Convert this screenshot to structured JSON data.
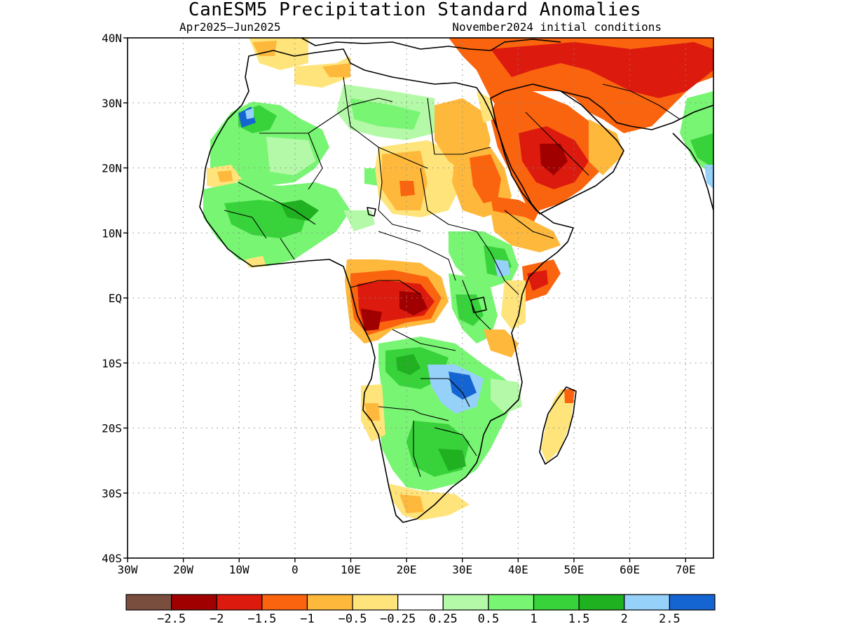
{
  "title": "CanESM5 Precipitation Standard Anomalies",
  "subtitle_left": "Apr2025–Jun2025",
  "subtitle_right": "November2024 initial conditions",
  "map": {
    "lon_range": [
      -30,
      75
    ],
    "lat_range": [
      -40,
      40
    ],
    "lat_ticks": [
      {
        "value": 40,
        "label": "40N"
      },
      {
        "value": 30,
        "label": "30N"
      },
      {
        "value": 20,
        "label": "20N"
      },
      {
        "value": 10,
        "label": "10N"
      },
      {
        "value": 0,
        "label": "EQ"
      },
      {
        "value": -10,
        "label": "10S"
      },
      {
        "value": -20,
        "label": "20S"
      },
      {
        "value": -30,
        "label": "30S"
      },
      {
        "value": -40,
        "label": "40S"
      }
    ],
    "lon_ticks": [
      {
        "value": -30,
        "label": "30W"
      },
      {
        "value": -20,
        "label": "20W"
      },
      {
        "value": -10,
        "label": "10W"
      },
      {
        "value": 0,
        "label": "0"
      },
      {
        "value": 10,
        "label": "10E"
      },
      {
        "value": 20,
        "label": "20E"
      },
      {
        "value": 30,
        "label": "30E"
      },
      {
        "value": 40,
        "label": "40E"
      },
      {
        "value": 50,
        "label": "50E"
      },
      {
        "value": 60,
        "label": "60E"
      },
      {
        "value": 70,
        "label": "70E"
      }
    ],
    "grid": "dotted"
  },
  "colorbar": {
    "colors": [
      "#7a4e3f",
      "#a10000",
      "#dc1a0e",
      "#fb640e",
      "#feb93d",
      "#fee47a",
      "#ffffff",
      "#b4f9a8",
      "#78f573",
      "#38d23a",
      "#1fb11f",
      "#96d1fa",
      "#1464d2"
    ],
    "labels": [
      "−2.5",
      "−2",
      "−1.5",
      "−1",
      "−0.5",
      "−0.25",
      "0.25",
      "0.5",
      "1",
      "1.5",
      "2",
      "2.5"
    ]
  }
}
